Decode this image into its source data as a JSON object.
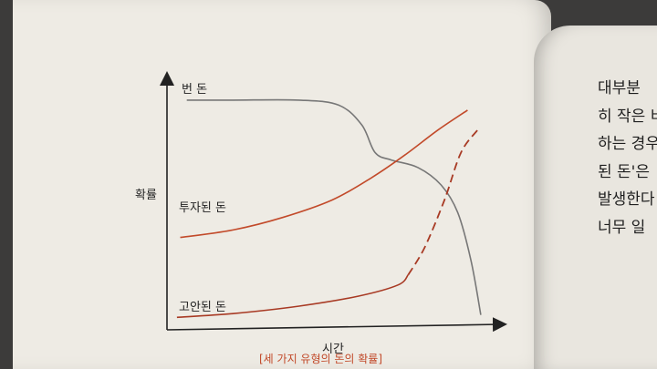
{
  "chart_data": {
    "type": "line",
    "xlabel": "시간",
    "ylabel": "확률",
    "caption": "[세 가지 유형의 돈의 확률]",
    "xlim": [
      0,
      10
    ],
    "ylim": [
      0,
      10
    ],
    "series": [
      {
        "name": "번 돈",
        "color": "#777777",
        "style": "solid",
        "points": [
          [
            0.6,
            9.2
          ],
          [
            2.0,
            9.2
          ],
          [
            4.0,
            9.2
          ],
          [
            5.2,
            9.0
          ],
          [
            5.9,
            8.2
          ],
          [
            6.3,
            7.1
          ],
          [
            6.8,
            6.8
          ],
          [
            7.6,
            6.5
          ],
          [
            8.3,
            5.8
          ],
          [
            8.8,
            4.7
          ],
          [
            9.2,
            2.8
          ],
          [
            9.5,
            0.6
          ]
        ]
      },
      {
        "name": "투자된 돈",
        "color": "#c24a2a",
        "style": "solid",
        "points": [
          [
            0.4,
            3.7
          ],
          [
            2.0,
            4.0
          ],
          [
            3.5,
            4.5
          ],
          [
            5.0,
            5.2
          ],
          [
            6.2,
            6.1
          ],
          [
            7.2,
            7.0
          ],
          [
            8.2,
            8.0
          ],
          [
            9.1,
            8.8
          ]
        ]
      },
      {
        "name": "고안된 돈",
        "color": "#a83a24",
        "style": "solid",
        "points": [
          [
            0.3,
            0.5
          ],
          [
            2.0,
            0.65
          ],
          [
            4.0,
            0.95
          ],
          [
            5.8,
            1.35
          ],
          [
            7.0,
            1.8
          ],
          [
            7.3,
            2.2
          ]
        ]
      },
      {
        "name": "",
        "color": "#a83a24",
        "style": "dashed",
        "points": [
          [
            7.3,
            2.2
          ],
          [
            7.8,
            3.3
          ],
          [
            8.4,
            5.2
          ],
          [
            8.9,
            7.1
          ],
          [
            9.4,
            8.0
          ]
        ]
      }
    ]
  },
  "right_page": {
    "lines": [
      "대부분 ",
      "히 작은 비",
      "하는 경우",
      "된 돈'은 ",
      "발생한다",
      "너무 일"
    ]
  }
}
